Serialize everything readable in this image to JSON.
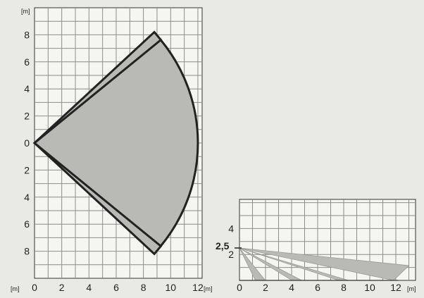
{
  "top_view": {
    "x_unit": "[m]",
    "y_unit": "[m]",
    "origin_unit": "[m]",
    "x_ticks": [
      "0",
      "2",
      "4",
      "6",
      "8",
      "10",
      "12"
    ],
    "x_tick_values": [
      0,
      2,
      4,
      6,
      8,
      10,
      12
    ],
    "y_ticks_above": [
      "8",
      "6",
      "4",
      "2"
    ],
    "y_ticks_above_values": [
      8,
      6,
      4,
      2
    ],
    "y_tick_zero": "0",
    "y_ticks_below": [
      "2",
      "4",
      "6",
      "8"
    ],
    "y_ticks_below_values": [
      2,
      4,
      6,
      8
    ],
    "x_range": [
      0,
      12
    ],
    "y_range": [
      -10,
      10
    ],
    "grid": true,
    "coverage_fill": "#b9b9b6",
    "outline_color": "#222222",
    "outer_wedge": [
      [
        0,
        0
      ],
      [
        8.8,
        8.2
      ],
      [
        9.3,
        7.6
      ],
      [
        9.3,
        -7.6
      ],
      [
        8.8,
        -8.2
      ]
    ],
    "sector_radius": 12,
    "sector_half_angle_deg": 39.4
  },
  "side_view": {
    "x_unit": "[m]",
    "x_ticks": [
      "0",
      "2",
      "4",
      "6",
      "8",
      "10",
      "12"
    ],
    "x_tick_values": [
      0,
      2,
      4,
      6,
      8,
      10,
      12
    ],
    "y_ticks": [
      "4",
      "2"
    ],
    "y_tick_values": [
      4,
      2
    ],
    "mount_label": "2,5",
    "mount_height": 2.5,
    "x_range": [
      0,
      13.5
    ],
    "y_range": [
      0,
      6
    ],
    "grid": true,
    "beam_fill": "#b9b9b6",
    "beams": [
      {
        "x_end": 1.6,
        "y_end": 0
      },
      {
        "x_end": 4.4,
        "y_end": 0
      },
      {
        "x_end": 8.0,
        "y_end": 0
      },
      {
        "x_end": 12.2,
        "y_end": 0.6
      }
    ]
  }
}
